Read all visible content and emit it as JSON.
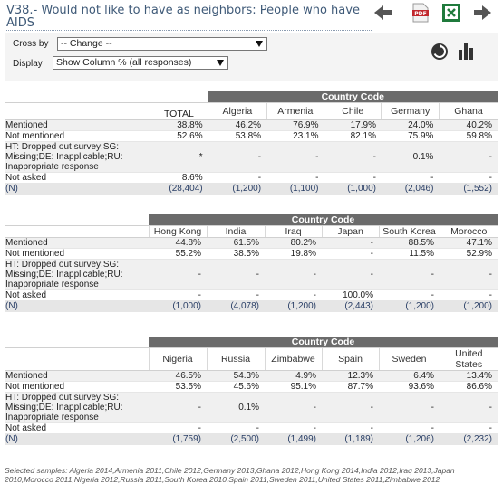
{
  "title": "V38.- Would not like to have as neighbors: People who have AIDS",
  "toolbar": {
    "back_icon": "arrow-left-icon",
    "pdf_icon": "pdf-icon",
    "excel_icon": "excel-icon",
    "forward_icon": "arrow-right-icon"
  },
  "controls": {
    "cross_by_label": "Cross by",
    "cross_by_value": "-- Change --",
    "display_label": "Display",
    "display_value": "Show Column % (all responses)"
  },
  "table": {
    "group_header": "Country Code",
    "total_label": "TOTAL",
    "row_labels": [
      "Mentioned",
      "Not mentioned",
      "HT: Dropped out survey;SG: Missing;DE: Inapplicable;RU: Inappropriate response",
      "Not asked",
      "(N)"
    ],
    "blocks": [
      {
        "countries": [
          "Algeria",
          "Armenia",
          "Chile",
          "Germany",
          "Ghana"
        ],
        "total": [
          "38.8%",
          "52.6%",
          "*",
          "8.6%",
          "(28,404)"
        ],
        "rows": [
          [
            "46.2%",
            "76.9%",
            "17.9%",
            "24.0%",
            "40.2%"
          ],
          [
            "53.8%",
            "23.1%",
            "82.1%",
            "75.9%",
            "59.8%"
          ],
          [
            "-",
            "-",
            "-",
            "0.1%",
            "-"
          ],
          [
            "-",
            "-",
            "-",
            "-",
            "-"
          ],
          [
            "(1,200)",
            "(1,100)",
            "(1,000)",
            "(2,046)",
            "(1,552)"
          ]
        ]
      },
      {
        "countries": [
          "Hong Kong",
          "India",
          "Iraq",
          "Japan",
          "South Korea",
          "Morocco"
        ],
        "rows": [
          [
            "44.8%",
            "61.5%",
            "80.2%",
            "-",
            "88.5%",
            "47.1%"
          ],
          [
            "55.2%",
            "38.5%",
            "19.8%",
            "-",
            "11.5%",
            "52.9%"
          ],
          [
            "-",
            "-",
            "-",
            "-",
            "-",
            "-"
          ],
          [
            "-",
            "-",
            "-",
            "100.0%",
            "-",
            "-"
          ],
          [
            "(1,000)",
            "(4,078)",
            "(1,200)",
            "(2,443)",
            "(1,200)",
            "(1,200)"
          ]
        ]
      },
      {
        "countries": [
          "Nigeria",
          "Russia",
          "Zimbabwe",
          "Spain",
          "Sweden",
          "United States"
        ],
        "rows": [
          [
            "46.5%",
            "54.3%",
            "4.9%",
            "12.3%",
            "6.4%",
            "13.4%"
          ],
          [
            "53.5%",
            "45.6%",
            "95.1%",
            "87.7%",
            "93.6%",
            "86.6%"
          ],
          [
            "-",
            "0.1%",
            "-",
            "-",
            "-",
            "-"
          ],
          [
            "-",
            "-",
            "-",
            "-",
            "-",
            "-"
          ],
          [
            "(1,759)",
            "(2,500)",
            "(1,499)",
            "(1,189)",
            "(1,206)",
            "(2,232)"
          ]
        ]
      }
    ]
  },
  "footer": "Selected samples: Algeria 2014,Armenia 2011,Chile 2012,Germany 2013,Ghana 2012,Hong Kong 2014,India 2012,Iraq 2013,Japan 2010,Morocco 2011,Nigeria 2012,Russia 2011,South Korea 2010,Spain 2011,Sweden 2011,United States 2011,Zimbabwe 2012"
}
